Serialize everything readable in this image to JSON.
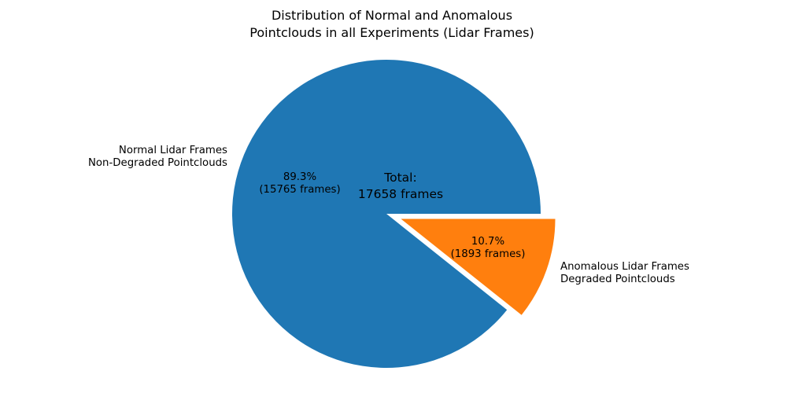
{
  "chart_data": {
    "type": "pie",
    "title": "Distribution of Normal and Anomalous\nPointclouds in all Experiments (Lidar Frames)",
    "total": 17658,
    "total_label": "Total:\n17658 frames",
    "startangle_deg": 0,
    "counterclock": true,
    "background_color": "#ffffff",
    "text_color": "#000000",
    "slices": [
      {
        "label": "Normal Lidar Frames\nNon-Degraded Pointclouds",
        "value": 15765,
        "pct": 89.3,
        "autopct_label": "89.3%\n(15765 frames)",
        "color": "#1f77b4",
        "explode": 0
      },
      {
        "label": "Anomalous Lidar Frames\nDegraded Pointclouds",
        "value": 1893,
        "pct": 10.7,
        "autopct_label": "10.7%\n(1893 frames)",
        "color": "#ff7f0e",
        "explode": 0.1
      }
    ]
  }
}
